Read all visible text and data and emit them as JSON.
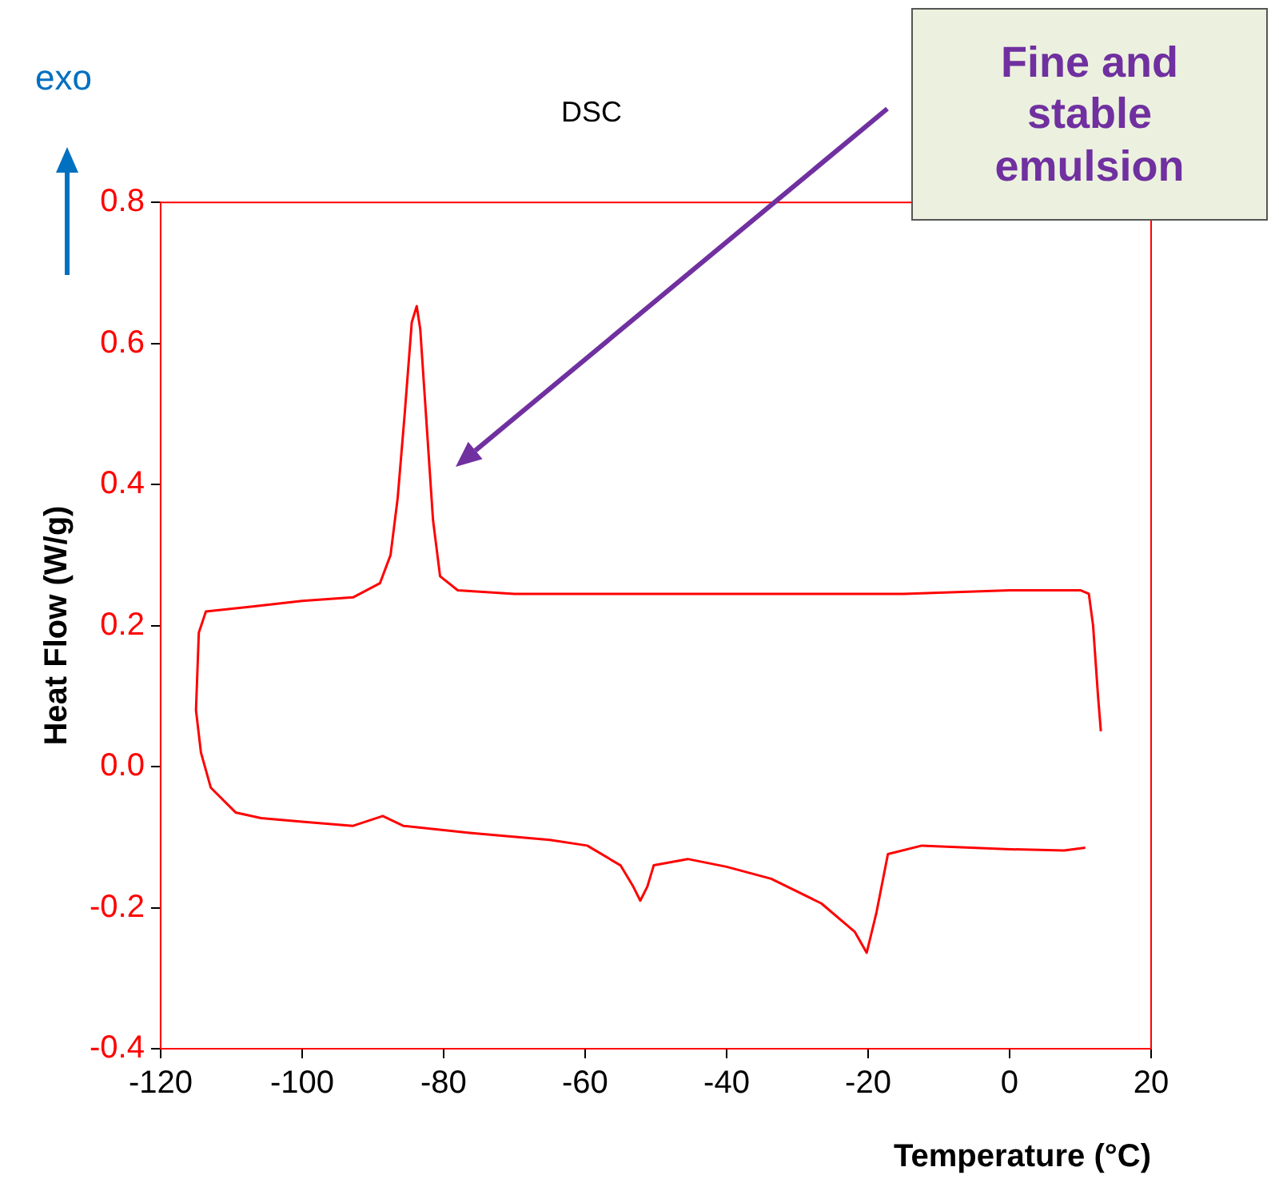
{
  "chart_data": {
    "type": "line",
    "title": "DSC",
    "xlabel": "Temperature (°C)",
    "ylabel": "Heat Flow (W/g)",
    "xlim": [
      -120,
      20
    ],
    "xticks": [
      -120,
      -100,
      -80,
      -60,
      -40,
      -20,
      0,
      20
    ],
    "ylim": [
      -0.4,
      0.8
    ],
    "yticks": [
      {
        "value": -0.4,
        "label": "-0.4"
      },
      {
        "value": -0.2,
        "label": "-0.2"
      },
      {
        "value": 0,
        "label": "0.0"
      },
      {
        "value": 0.2,
        "label": "0.2"
      },
      {
        "value": 0.4,
        "label": "0.4"
      },
      {
        "value": 0.6,
        "label": "0.6"
      },
      {
        "value": 0.8,
        "label": "0.8"
      }
    ],
    "series": [
      {
        "color": "#ff0000",
        "x": [
          12.9,
          12.5,
          11.8,
          11.2,
          10,
          0,
          -15,
          -30,
          -45,
          -60,
          -70,
          -78,
          -80.5,
          -81.5,
          -82.5,
          -83.3,
          -83.8,
          -84.5,
          -85.5,
          -86.5,
          -87.5,
          -89,
          -92.8,
          -100,
          -107,
          -113.6,
          -114.6,
          -115,
          -114.3,
          -112.9,
          -109.4,
          -105.8,
          -100,
          -92.8,
          -88.6,
          -85.7,
          -76.3,
          -65,
          -59.7,
          -55,
          -53.2,
          -52.2,
          -51.2,
          -50.3,
          -45.5,
          -40,
          -33.7,
          -26.6,
          -21.9,
          -20.2,
          -18.8,
          -17.2,
          -12.4,
          -0.6,
          7.7,
          10.7
        ],
        "values": [
          0.05,
          0.1,
          0.2,
          0.245,
          0.25,
          0.25,
          0.245,
          0.245,
          0.245,
          0.245,
          0.245,
          0.25,
          0.27,
          0.35,
          0.5,
          0.62,
          0.653,
          0.63,
          0.5,
          0.38,
          0.3,
          0.26,
          0.24,
          0.235,
          0.227,
          0.22,
          0.19,
          0.08,
          0.02,
          -0.03,
          -0.065,
          -0.073,
          -0.078,
          -0.084,
          -0.07,
          -0.084,
          -0.094,
          -0.104,
          -0.112,
          -0.14,
          -0.17,
          -0.19,
          -0.17,
          -0.14,
          -0.131,
          -0.142,
          -0.159,
          -0.194,
          -0.234,
          -0.264,
          -0.206,
          -0.124,
          -0.112,
          -0.117,
          -0.119,
          -0.115
        ]
      }
    ],
    "annotations": [
      "exo",
      "Fine and stable emulsion"
    ]
  }
}
